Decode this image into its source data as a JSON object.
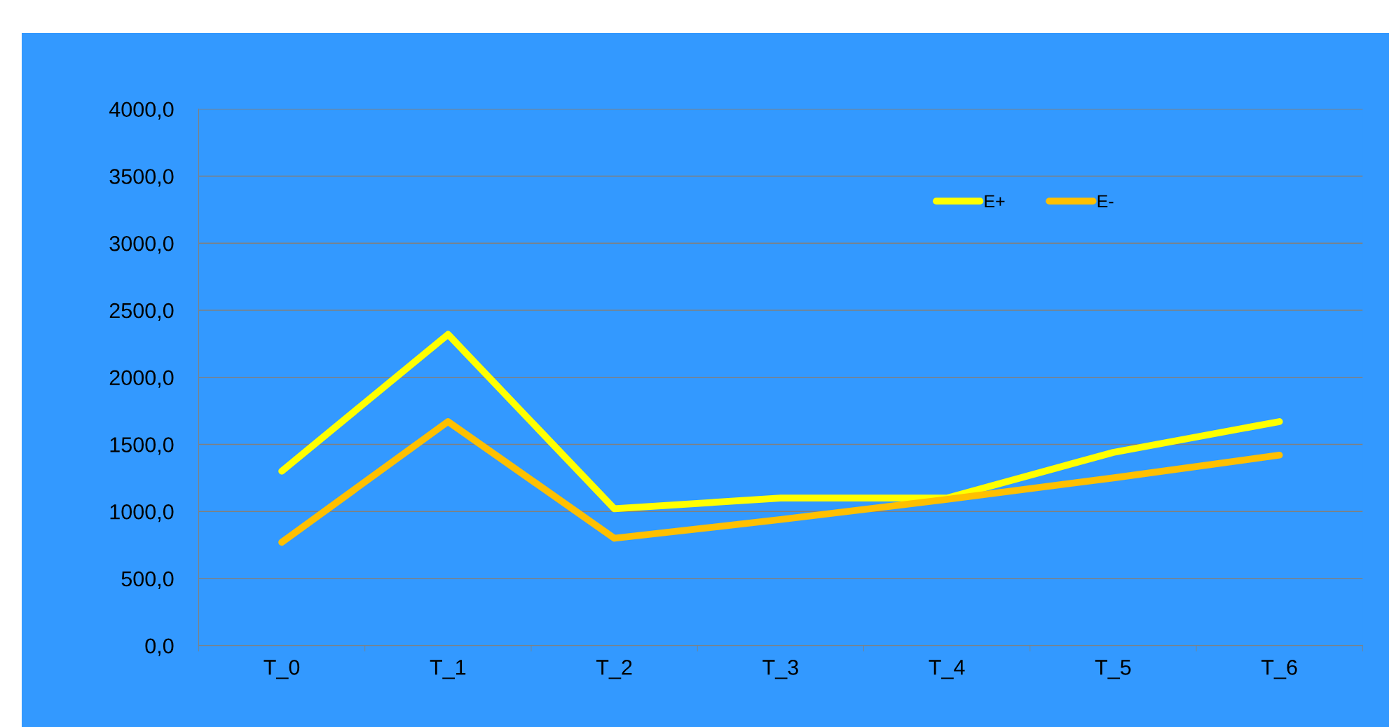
{
  "chart_data": {
    "type": "line",
    "categories": [
      "T_0",
      "T_1",
      "T_2",
      "T_3",
      "T_4",
      "T_5",
      "T_6"
    ],
    "series": [
      {
        "name": "E+",
        "color": "#ffff00",
        "values": [
          1300,
          2320,
          1020,
          1100,
          1100,
          1440,
          1670
        ]
      },
      {
        "name": "E-",
        "color": "#ffc000",
        "values": [
          770,
          1670,
          800,
          940,
          1090,
          1250,
          1420
        ]
      }
    ],
    "ylim": [
      0,
      4000
    ],
    "yticks": [
      {
        "value": 0,
        "label": "0,0"
      },
      {
        "value": 500,
        "label": "500,0"
      },
      {
        "value": 1000,
        "label": "1000,0"
      },
      {
        "value": 1500,
        "label": "1500,0"
      },
      {
        "value": 2000,
        "label": "2000,0"
      },
      {
        "value": 2500,
        "label": "2500,0"
      },
      {
        "value": 3000,
        "label": "3000,0"
      },
      {
        "value": 3500,
        "label": "3500,0"
      },
      {
        "value": 4000,
        "label": "4000,0"
      }
    ],
    "grid": "y",
    "legend": "top right",
    "marker": "none",
    "line_style": "solid"
  }
}
